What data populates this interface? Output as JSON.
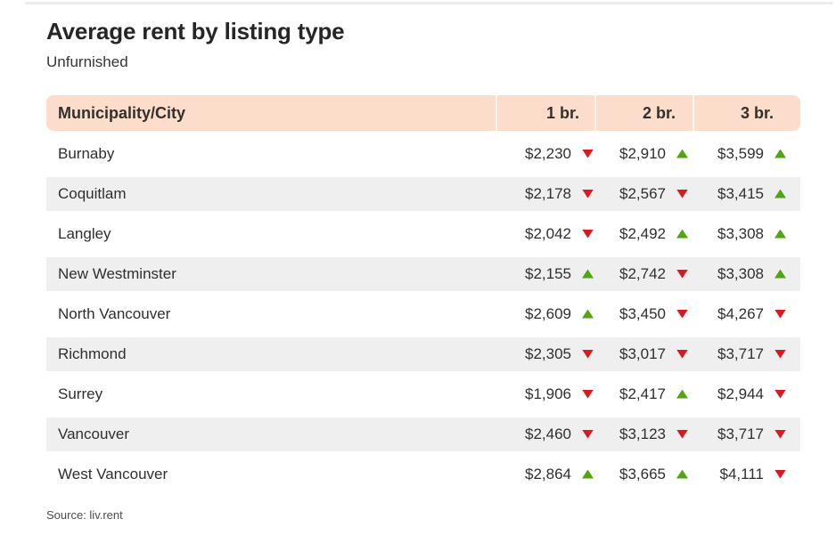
{
  "header": {
    "title": "Average rent by listing type",
    "subtitle": "Unfurnished"
  },
  "table": {
    "columns": [
      "Municipality/City",
      "1 br.",
      "2 br.",
      "3 br."
    ],
    "rows": [
      {
        "city": "Burnaby",
        "cols": [
          {
            "value": "$2,230",
            "trend": "down"
          },
          {
            "value": "$2,910",
            "trend": "up"
          },
          {
            "value": "$3,599",
            "trend": "up"
          }
        ]
      },
      {
        "city": "Coquitlam",
        "cols": [
          {
            "value": "$2,178",
            "trend": "down"
          },
          {
            "value": "$2,567",
            "trend": "down"
          },
          {
            "value": "$3,415",
            "trend": "up"
          }
        ]
      },
      {
        "city": "Langley",
        "cols": [
          {
            "value": "$2,042",
            "trend": "down"
          },
          {
            "value": "$2,492",
            "trend": "up"
          },
          {
            "value": "$3,308",
            "trend": "up"
          }
        ]
      },
      {
        "city": "New Westminster",
        "cols": [
          {
            "value": "$2,155",
            "trend": "up"
          },
          {
            "value": "$2,742",
            "trend": "down"
          },
          {
            "value": "$3,308",
            "trend": "up"
          }
        ]
      },
      {
        "city": "North Vancouver",
        "cols": [
          {
            "value": "$2,609",
            "trend": "up"
          },
          {
            "value": "$3,450",
            "trend": "down"
          },
          {
            "value": "$4,267",
            "trend": "down"
          }
        ]
      },
      {
        "city": "Richmond",
        "cols": [
          {
            "value": "$2,305",
            "trend": "down"
          },
          {
            "value": "$3,017",
            "trend": "down"
          },
          {
            "value": "$3,717",
            "trend": "down"
          }
        ]
      },
      {
        "city": "Surrey",
        "cols": [
          {
            "value": "$1,906",
            "trend": "down"
          },
          {
            "value": "$2,417",
            "trend": "up"
          },
          {
            "value": "$2,944",
            "trend": "down"
          }
        ]
      },
      {
        "city": "Vancouver",
        "cols": [
          {
            "value": "$2,460",
            "trend": "down"
          },
          {
            "value": "$3,123",
            "trend": "down"
          },
          {
            "value": "$3,717",
            "trend": "down"
          }
        ]
      },
      {
        "city": "West Vancouver",
        "cols": [
          {
            "value": "$2,864",
            "trend": "up"
          },
          {
            "value": "$3,665",
            "trend": "up"
          },
          {
            "value": "$4,111",
            "trend": "down"
          }
        ]
      }
    ]
  },
  "footer": {
    "source": "Source: liv.rent"
  },
  "colors": {
    "header_bg": "#fcdccb",
    "row_alt_bg": "#efefef",
    "trend_up": "#52a411",
    "trend_down": "#e0161d",
    "title_text": "#262626"
  },
  "chart_data": {
    "type": "table",
    "title": "Average rent by listing type",
    "subtitle": "Unfurnished",
    "columns": [
      "Municipality/City",
      "1 br.",
      "2 br.",
      "3 br."
    ],
    "rows": [
      {
        "municipality": "Burnaby",
        "values": [
          2230,
          2910,
          3599
        ],
        "trends": [
          "down",
          "up",
          "up"
        ]
      },
      {
        "municipality": "Coquitlam",
        "values": [
          2178,
          2567,
          3415
        ],
        "trends": [
          "down",
          "down",
          "up"
        ]
      },
      {
        "municipality": "Langley",
        "values": [
          2042,
          2492,
          3308
        ],
        "trends": [
          "down",
          "up",
          "up"
        ]
      },
      {
        "municipality": "New Westminster",
        "values": [
          2155,
          2742,
          3308
        ],
        "trends": [
          "up",
          "down",
          "up"
        ]
      },
      {
        "municipality": "North Vancouver",
        "values": [
          2609,
          3450,
          4267
        ],
        "trends": [
          "up",
          "down",
          "down"
        ]
      },
      {
        "municipality": "Richmond",
        "values": [
          2305,
          3017,
          3717
        ],
        "trends": [
          "down",
          "down",
          "down"
        ]
      },
      {
        "municipality": "Surrey",
        "values": [
          1906,
          2417,
          2944
        ],
        "trends": [
          "down",
          "up",
          "down"
        ]
      },
      {
        "municipality": "Vancouver",
        "values": [
          2460,
          3123,
          3717
        ],
        "trends": [
          "down",
          "down",
          "down"
        ]
      },
      {
        "municipality": "West Vancouver",
        "values": [
          2864,
          3665,
          4111
        ],
        "trends": [
          "up",
          "up",
          "down"
        ]
      }
    ],
    "source": "Source: liv.rent"
  }
}
